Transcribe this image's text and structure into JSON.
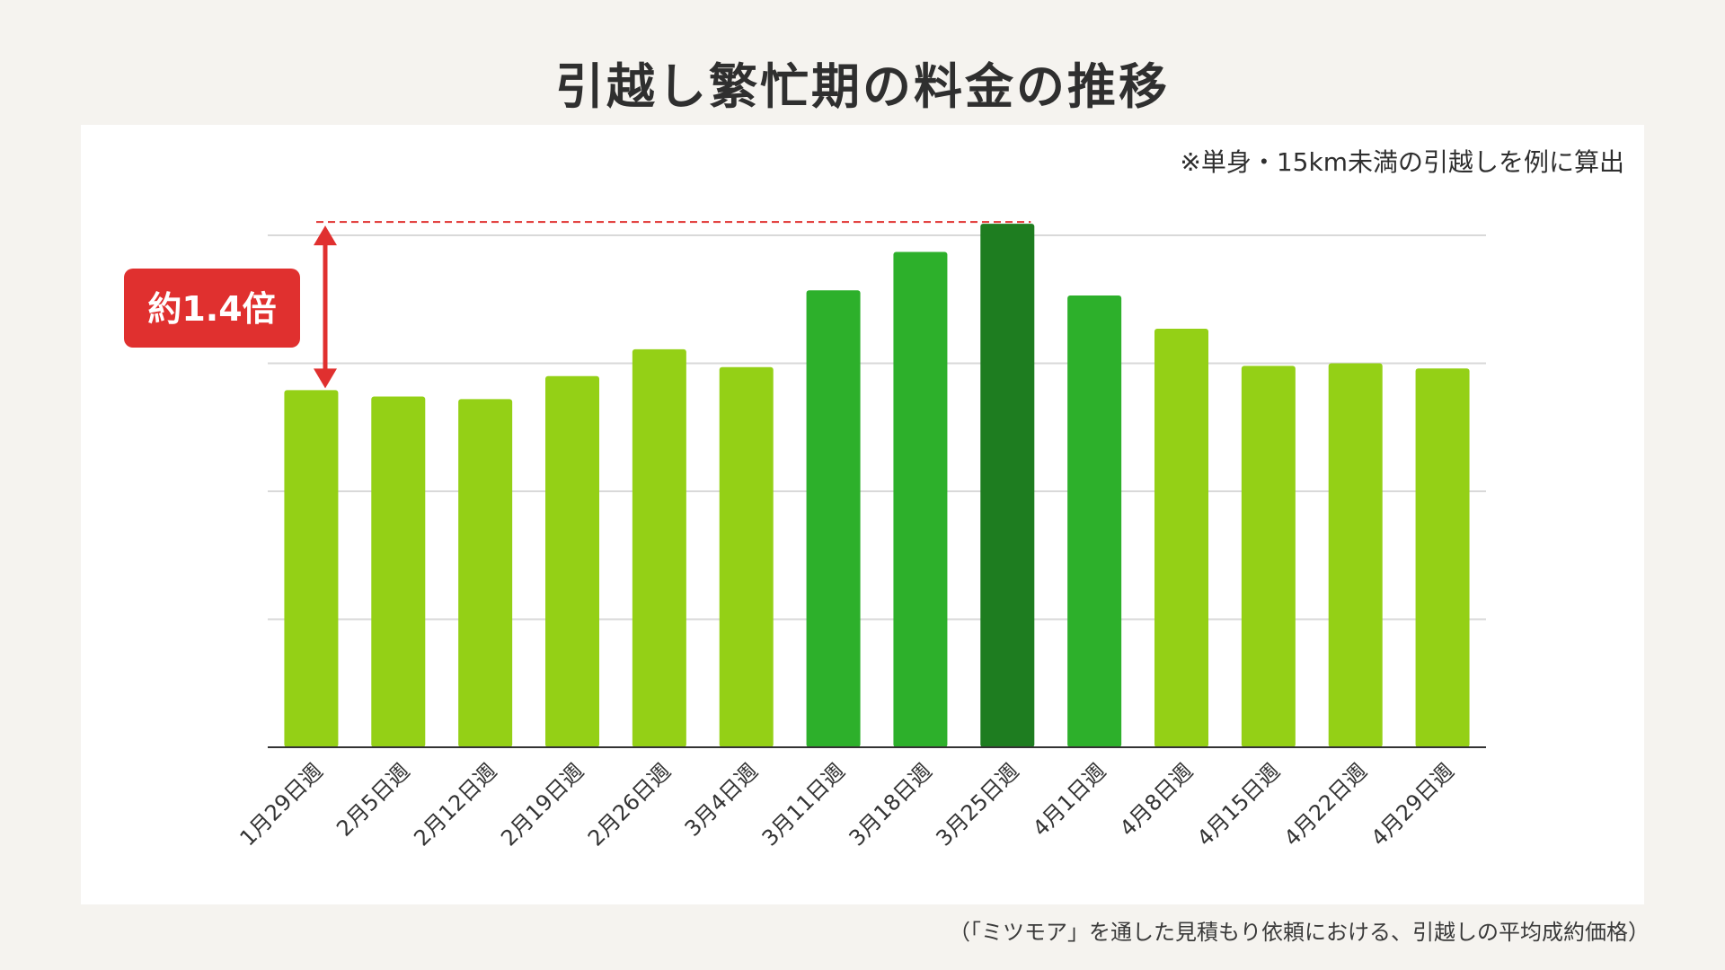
{
  "title": "引越し繁忙期の料金の推移",
  "note": "※単身・15km未満の引越しを例に算出",
  "source": "（「ミツモア」を通した見積もり依頼における、引越しの平均成約価格）",
  "callout": {
    "label": "約1.4倍"
  },
  "colors": {
    "light": "#94d016",
    "mid": "#2db02b",
    "dark": "#1e7d20",
    "callout": "#e0302f",
    "grid": "#d9d9d9",
    "axis": "#333333"
  },
  "chart_data": {
    "type": "bar",
    "title": "引越し繁忙期の料金の推移",
    "xlabel": "",
    "ylabel": "",
    "ylim": [
      0,
      4
    ],
    "grid": true,
    "categories": [
      "1月29日週",
      "2月5日週",
      "2月12日週",
      "2月19日週",
      "2月26日週",
      "3月4日週",
      "3月11日週",
      "3月18日週",
      "3月25日週",
      "4月1日週",
      "4月8日週",
      "4月15日週",
      "4月22日週",
      "4月29日週"
    ],
    "values": [
      2.79,
      2.74,
      2.72,
      2.9,
      3.11,
      2.97,
      3.57,
      3.87,
      4.09,
      3.53,
      3.27,
      2.98,
      3.0,
      2.96
    ],
    "bar_shades": [
      "light",
      "light",
      "light",
      "light",
      "light",
      "light",
      "mid",
      "mid",
      "dark",
      "mid",
      "light",
      "light",
      "light",
      "light"
    ]
  }
}
